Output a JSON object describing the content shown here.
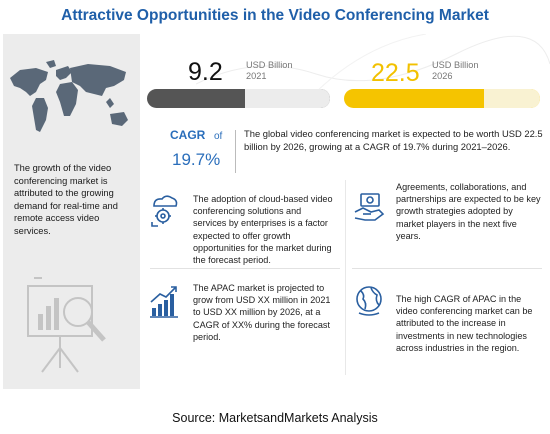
{
  "title": "Attractive Opportunities in the Video Conferencing Market",
  "left_panel": {
    "description": "The growth of the video conferencing market is attributed to the growing demand for real-time and remote access video services."
  },
  "stats": {
    "value_2021": "9.2",
    "unit_2021_line1": "USD Billion",
    "unit_2021_line2": "2021",
    "value_2026": "22.5",
    "unit_2026_line1": "USD Billion",
    "unit_2026_line2": "2026",
    "cagr_label": "CAGR",
    "cagr_of": "of",
    "cagr_value": "19.7%",
    "market_description": "The global video conferencing market is expected to be worth USD 22.5 billion by 2026, growing at a CAGR of 19.7% during 2021–2026."
  },
  "cards": {
    "cloud": "The adoption of cloud-based video conferencing solutions and services by enterprises is a factor expected to offer growth opportunities for the market during the forecast period.",
    "agreements": "Agreements, collaborations, and partnerships are expected to be key growth strategies adopted by market players in the next five years.",
    "apac_market": "The APAC market is projected to grow from USD XX million in 2021 to USD XX million by 2026, at a CAGR of XX% during the forecast period.",
    "apac_cagr": "The high CAGR of APAC in the video conferencing market can be attributed to the increase in investments in new technologies across industries in the region."
  },
  "source": "Source: MarketsandMarkets Analysis",
  "colors": {
    "title": "#1f5fa9",
    "cagr": "#2a6ebb",
    "bar_2021": "#555555",
    "bar_2026": "#f5c400",
    "value_2026": "#f2c100",
    "icon": "#2a5fa0"
  },
  "icons": [
    "world-map-icon",
    "presentation-magnifier-icon",
    "cloud-gear-icon",
    "handshake-money-icon",
    "growth-chart-icon",
    "globe-icon"
  ]
}
